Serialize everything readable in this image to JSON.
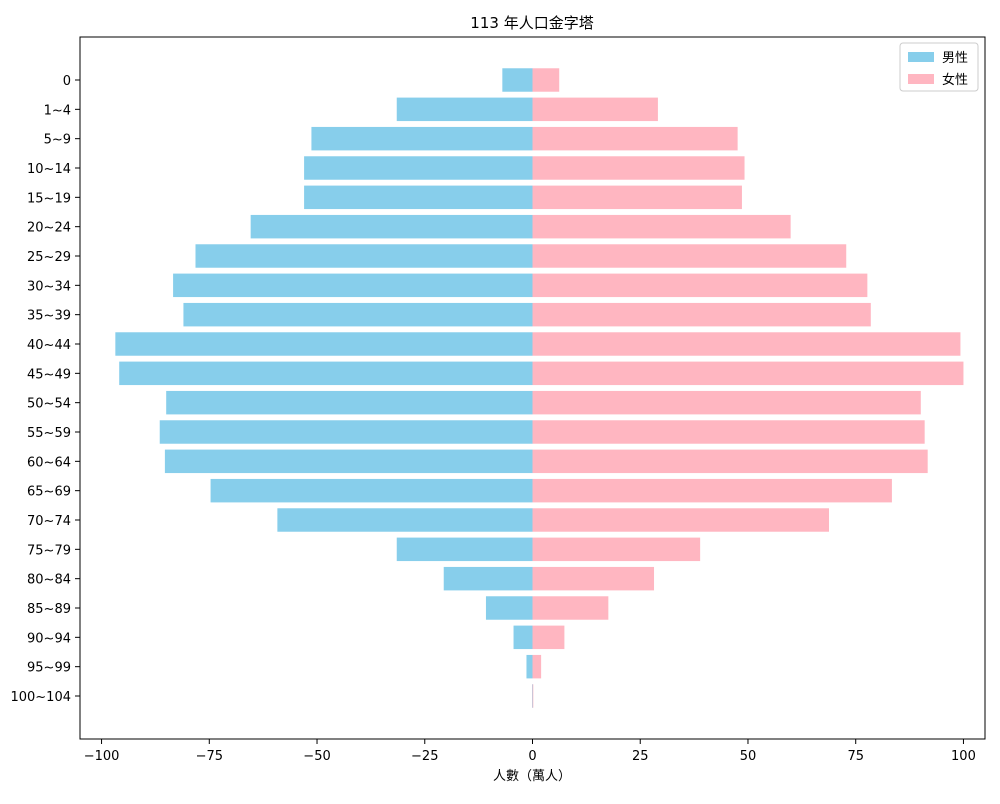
{
  "chart_data": {
    "type": "bar",
    "orientation": "horizontal",
    "title": "113 年人口金字塔",
    "xlabel": "人數（萬人）",
    "ylabel": "",
    "xlim": [
      -105,
      105
    ],
    "xticks": [
      -100,
      -75,
      -50,
      -25,
      0,
      25,
      50,
      75,
      100
    ],
    "xtick_labels": [
      "−100",
      "−75",
      "−50",
      "−25",
      "0",
      "25",
      "50",
      "75",
      "100"
    ],
    "grid": false,
    "legend_position": "top-right",
    "categories": [
      "0",
      "1~4",
      "5~9",
      "10~14",
      "15~19",
      "20~24",
      "25~29",
      "30~34",
      "35~39",
      "40~44",
      "45~49",
      "50~54",
      "55~59",
      "60~64",
      "65~69",
      "70~74",
      "75~79",
      "80~84",
      "85~89",
      "90~94",
      "95~99",
      "100~104"
    ],
    "series": [
      {
        "name": "男性",
        "color": "#87ceeb",
        "values": [
          -7,
          -31.5,
          -51.3,
          -53,
          -53,
          -65.4,
          -78.2,
          -83.4,
          -81,
          -96.8,
          -95.9,
          -85,
          -86.5,
          -85.3,
          -74.7,
          -59.2,
          -31.5,
          -20.6,
          -10.8,
          -4.4,
          -1.4,
          -0.1
        ]
      },
      {
        "name": "女性",
        "color": "#ffb6c1",
        "values": [
          6.2,
          29.1,
          47.6,
          49.2,
          48.6,
          59.9,
          72.8,
          77.7,
          78.5,
          99.3,
          100,
          90.1,
          91,
          91.7,
          83.4,
          68.8,
          38.9,
          28.2,
          17.6,
          7.4,
          2,
          0.1
        ]
      }
    ]
  }
}
